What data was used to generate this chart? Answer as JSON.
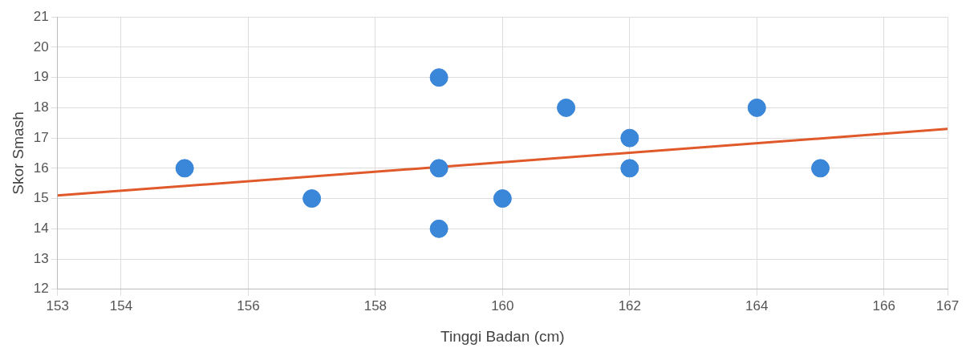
{
  "chart_data": {
    "type": "scatter",
    "xlabel": "Tinggi Badan (cm)",
    "ylabel": "Skor Smash",
    "x": [
      155,
      157,
      159,
      159,
      159,
      160,
      161,
      162,
      162,
      164,
      165
    ],
    "series": [
      {
        "color": "#3a86d8",
        "values": [
          16,
          15,
          19,
          16,
          14,
          15,
          18,
          17,
          16,
          18,
          16
        ],
        "marker": "circle"
      },
      {
        "type": "line",
        "color": "#e0592a",
        "x": [
          153,
          167
        ],
        "values": [
          15.1,
          17.3
        ],
        "marker": "none",
        "line_style": "solid"
      }
    ],
    "xlim": [
      153,
      167
    ],
    "xticks": [
      153,
      154,
      156,
      158,
      160,
      162,
      164,
      166,
      167
    ],
    "ylim": [
      12,
      21
    ],
    "yticks": [
      12,
      13,
      14,
      15,
      16,
      17,
      18,
      19,
      20,
      21
    ],
    "grid": true,
    "legend": false
  }
}
